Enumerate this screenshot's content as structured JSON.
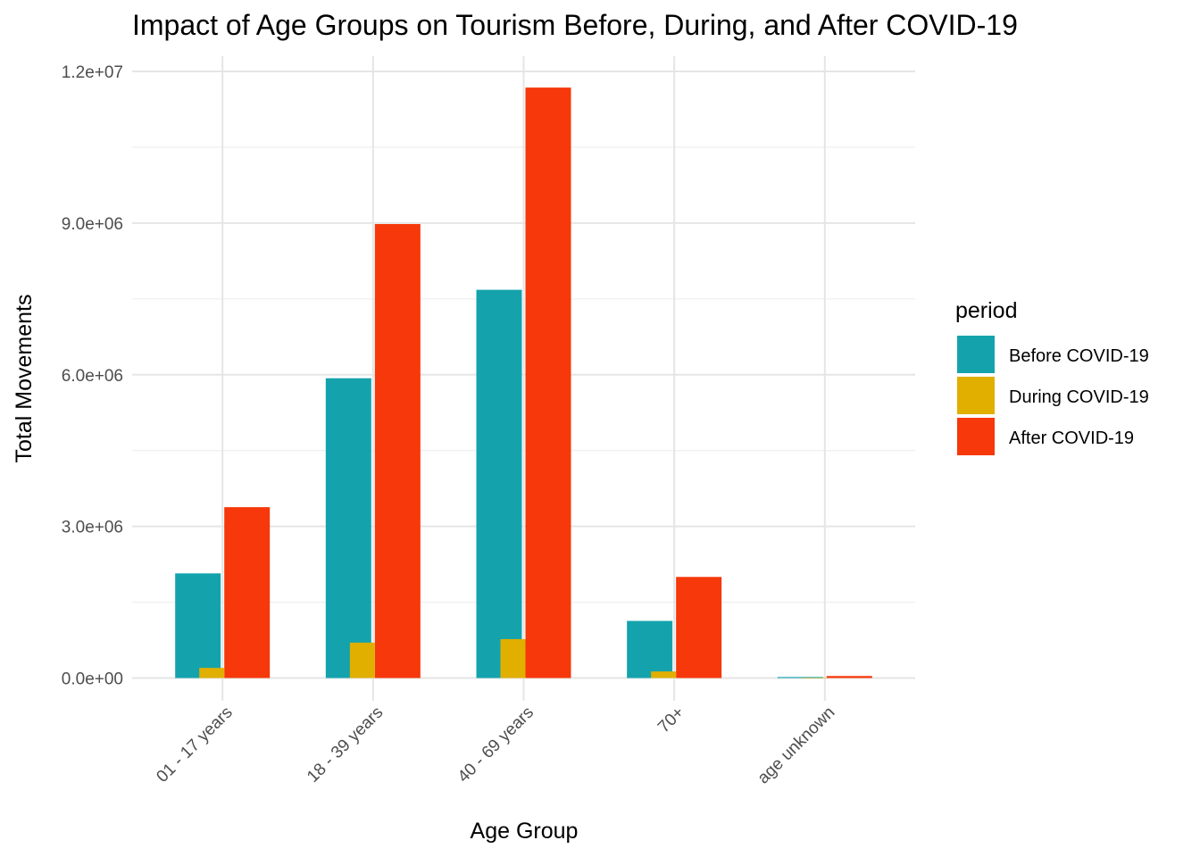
{
  "chart_data": {
    "type": "bar",
    "title": "Impact of Age Groups on Tourism Before, During, and After COVID-19",
    "xlabel": "Age Group",
    "ylabel": "Total Movements",
    "categories": [
      "01 - 17 years",
      "18 - 39 years",
      "40 - 69 years",
      "70+",
      "age unknown"
    ],
    "series": [
      {
        "name": "Before COVID-19",
        "color": "#14A3AD",
        "values": [
          2070000,
          5930000,
          7680000,
          1130000,
          20000
        ]
      },
      {
        "name": "During COVID-19",
        "color": "#E1AF00",
        "values": [
          200000,
          700000,
          770000,
          130000,
          5000
        ]
      },
      {
        "name": "After COVID-19",
        "color": "#F6380A",
        "values": [
          3380000,
          8980000,
          11680000,
          2000000,
          40000
        ]
      }
    ],
    "ylim": [
      -450000,
      12300000
    ],
    "y_ticks": [
      0,
      3000000,
      6000000,
      9000000,
      12000000
    ],
    "y_tick_labels": [
      "0.0e+00",
      "3.0e+06",
      "6.0e+06",
      "9.0e+06",
      "1.2e+07"
    ],
    "legend": {
      "title": "period",
      "position": "right"
    },
    "grid": true
  }
}
